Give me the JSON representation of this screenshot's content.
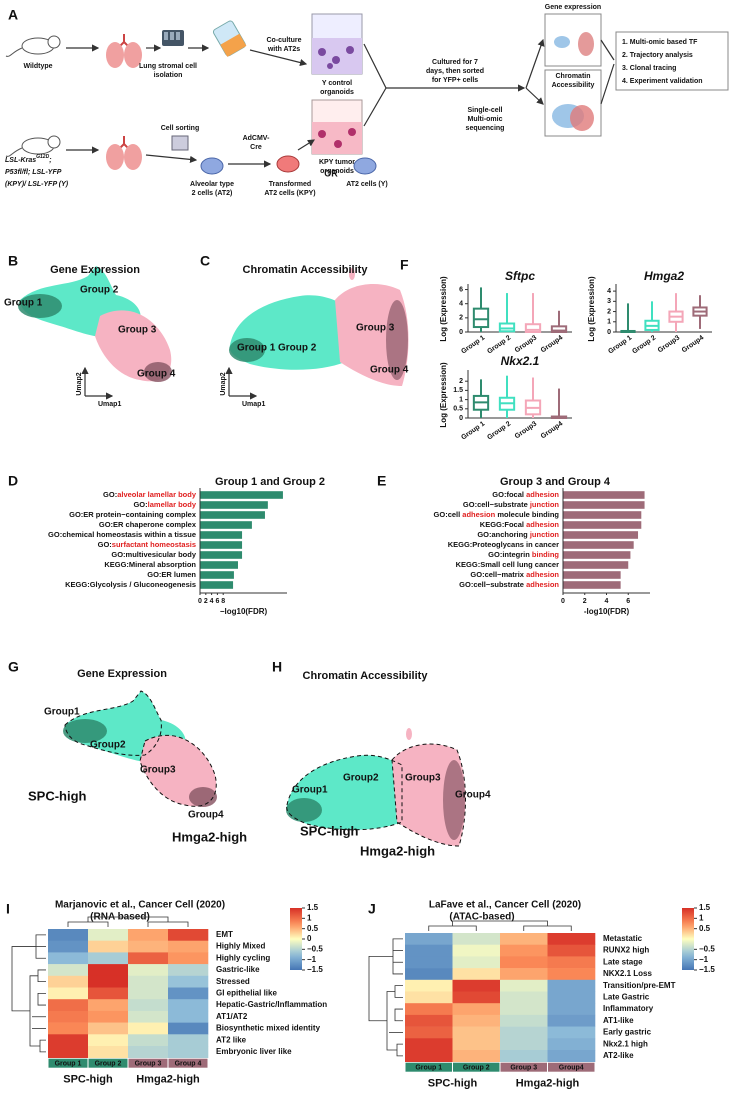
{
  "figure": {
    "panel_a": {
      "label": "A",
      "wildtype": "Wildtype",
      "isolation": [
        "Lung stromal cell",
        "isolation"
      ],
      "coculture": [
        "Co-culture",
        "with AT2s"
      ],
      "y_organoids": [
        "Y control",
        "organoids"
      ],
      "kpy_organoids": [
        "KPY tumor",
        "organoids"
      ],
      "cultured": [
        "Cultured for 7",
        "days, then sorted",
        "for YFP+ cells"
      ],
      "sequencing": [
        "Single-cell",
        "Multi-omic",
        "sequencing"
      ],
      "gene_expression": "Gene expression",
      "chromatin": [
        "Chromatin",
        "Accessibility"
      ],
      "steps": [
        "1. Multi-omic based TF",
        "2. Trajectory analysis",
        "3. Clonal tracing",
        "4. Experiment validation"
      ],
      "genotype": {
        "kras": "LSL-Kras",
        "sup": "G12D",
        "sep": ";",
        "line2": "P53fl/fl; LSL-YFP",
        "line3": "(KPY)/ LSL-YFP (Y)"
      },
      "sorting": "Cell sorting",
      "adcmv": [
        "AdCMV-",
        "Cre"
      ],
      "at2": [
        "Alveolar type",
        "2 cells (AT2)"
      ],
      "transformed": [
        "Transformed",
        "AT2 cells (KPY)"
      ],
      "or": "OR",
      "at2_y": "AT2 cells (Y)"
    },
    "panel_b": {
      "label": "B",
      "title": "Gene Expression",
      "groups": [
        "Group 1",
        "Group 2",
        "Group 3",
        "Group 4"
      ],
      "axes": [
        "Umap1",
        "Umap2"
      ]
    },
    "panel_c": {
      "label": "C",
      "title": "Chromatin Accessibility",
      "groups": [
        "Group 1",
        "Group 2",
        "Group 3",
        "Group 4"
      ],
      "axes": [
        "Umap1",
        "Umap2"
      ]
    },
    "panel_f": {
      "label": "F"
    },
    "panel_g": {
      "label": "G",
      "title": "Gene Expression",
      "groups": [
        "Group1",
        "Group2",
        "Group3",
        "Group4"
      ],
      "regions": [
        "SPC-high",
        "Hmga2-high"
      ]
    },
    "panel_h": {
      "label": "H",
      "title": "Chromatin Accessibility",
      "groups": [
        "Group1",
        "Group2",
        "Group3",
        "Group4"
      ],
      "regions": [
        "SPC-high",
        "Hmga2-high"
      ]
    }
  },
  "chart_data": [
    {
      "type": "box",
      "title": "Sftpc",
      "ylabel": "Log (Expression)",
      "categories": [
        "Group 1",
        "Group 2",
        "Group3",
        "Group4"
      ],
      "colors": [
        "#2e8b6e",
        "#40e0c0",
        "#f4a6b8",
        "#9e6b78"
      ],
      "min": [
        0,
        0,
        0,
        0
      ],
      "q1": [
        0.7,
        0.1,
        0,
        0
      ],
      "median": [
        1.8,
        0.5,
        0.3,
        0.2
      ],
      "q3": [
        3.3,
        1.2,
        1.1,
        0.8
      ],
      "max": [
        6.3,
        5.5,
        5.5,
        3
      ],
      "ylim": [
        0,
        6.5
      ],
      "yticks": [
        0,
        2,
        4,
        6
      ]
    },
    {
      "type": "box",
      "title": "Hmga2",
      "ylabel": "Log (Expression)",
      "categories": [
        "Group 1",
        "Group 2",
        "Group3",
        "Group4"
      ],
      "colors": [
        "#2e8b6e",
        "#40e0c0",
        "#f4a6b8",
        "#9e6b78"
      ],
      "min": [
        0,
        0,
        0,
        0.3
      ],
      "q1": [
        0,
        0.2,
        1,
        1.6
      ],
      "median": [
        0,
        0.6,
        1.5,
        2
      ],
      "q3": [
        0.1,
        1.1,
        2,
        2.4
      ],
      "max": [
        2.8,
        3,
        3.8,
        3.6
      ],
      "ylim": [
        0,
        4.5
      ],
      "yticks": [
        0,
        1,
        2,
        3,
        4
      ]
    },
    {
      "type": "box",
      "title": "Nkx2.1",
      "ylabel": "Log (Expression)",
      "categories": [
        "Group 1",
        "Group 2",
        "Group3",
        "Group4"
      ],
      "colors": [
        "#2e8b6e",
        "#40e0c0",
        "#f4a6b8",
        "#9e6b78"
      ],
      "min": [
        0,
        0,
        0,
        0
      ],
      "q1": [
        0.45,
        0.45,
        0.2,
        0
      ],
      "median": [
        0.85,
        0.8,
        0.55,
        0
      ],
      "q3": [
        1.2,
        1.1,
        0.95,
        0.08
      ],
      "max": [
        2.1,
        2.3,
        2.2,
        1.6
      ],
      "ylim": [
        0,
        2.5
      ],
      "yticks": [
        0,
        0.5,
        1,
        1.5,
        2
      ]
    },
    {
      "type": "barh",
      "panel": "D",
      "title": "Group 1 and Group 2",
      "color": "#2e8b6e",
      "xlabel": "−log10(FDR)",
      "xlim": [
        0,
        30
      ],
      "xticks": [
        0,
        2,
        4,
        6,
        8
      ],
      "categories": [
        {
          "text": "GO:",
          "highlight": "alveolar lamellar body"
        },
        {
          "text": "GO:",
          "highlight": "lamellar body"
        },
        {
          "text": "GO:ER protein−containing complex"
        },
        {
          "text": "GO:ER chaperone complex"
        },
        {
          "text": "GO:chemical homeostasis within a tissue"
        },
        {
          "text": "GO:",
          "highlight": "surfactant homeostasis"
        },
        {
          "text": "GO:multivesicular body"
        },
        {
          "text": "KEGG:Mineral absorption"
        },
        {
          "text": "GO:ER lumen"
        },
        {
          "text": "KEGG:Glycolysis / Gluconeogenesis"
        }
      ],
      "values": [
        28.6,
        23.4,
        22.4,
        17.9,
        14.5,
        14.5,
        14.5,
        13.1,
        11.7,
        11.4
      ]
    },
    {
      "type": "barh",
      "panel": "E",
      "title": "Group 3 and Group 4",
      "color": "#9e6b78",
      "xlabel": "-log10(FDR)",
      "xlim": [
        0,
        8
      ],
      "xticks": [
        0,
        2,
        4,
        6
      ],
      "categories": [
        {
          "text": "GO:focal ",
          "highlight": "adhesion"
        },
        {
          "text": "GO:cell−substrate ",
          "highlight": "junction"
        },
        {
          "text": "GO:cell ",
          "highlight": "adhesion",
          "after": " molecule binding"
        },
        {
          "text": "KEGG:Focal ",
          "highlight": "adhesion"
        },
        {
          "text": "GO:anchoring ",
          "highlight": "junction"
        },
        {
          "text": "KEGG:Proteoglycans in cancer"
        },
        {
          "text": "GO:integrin ",
          "highlight": "binding"
        },
        {
          "text": "KEGG:Small cell lung cancer"
        },
        {
          "text": "GO:cell−matrix ",
          "highlight": "adhesion"
        },
        {
          "text": "GO:cell−substrate ",
          "highlight": "adhesion"
        }
      ],
      "values": [
        7.5,
        7.5,
        7.2,
        7.2,
        6.9,
        6.5,
        6.2,
        6.0,
        5.3,
        5.3
      ]
    },
    {
      "type": "heatmap",
      "panel": "I",
      "title": "Marjanovic et al., Cancer Cell (2020)",
      "subtitle": "(RNA based)",
      "columns": [
        "Group 1",
        "Group 2",
        "Group 3",
        "Group 4"
      ],
      "column_colors": [
        "#2e8b6e",
        "#2e8b6e",
        "#9e6b78",
        "#9e6b78"
      ],
      "groups": [
        "SPC-high",
        "Hmga2-high"
      ],
      "group_colors": [
        "#2e8b6e",
        "#9e6b78"
      ],
      "rows": [
        "EMT",
        "Highly Mixed",
        "Highly cycling",
        "Gastric-like",
        "Stressed",
        "GI epithelial like",
        "Hepatic-Gastric/Inflammation",
        "AT1/AT2",
        "Biosynthetic mixed identity",
        "AT2 like",
        "Embryonic liver like"
      ],
      "values": [
        [
          -1.3,
          -0.2,
          0.6,
          1.3
        ],
        [
          -1.2,
          0.3,
          0.5,
          0.6
        ],
        [
          -0.8,
          -0.6,
          1.1,
          0.7
        ],
        [
          -0.3,
          1.5,
          -0.2,
          -0.5
        ],
        [
          0.3,
          1.5,
          -0.3,
          -0.7
        ],
        [
          0.1,
          1.2,
          -0.3,
          -1.2
        ],
        [
          1.0,
          0.6,
          -0.4,
          -0.8
        ],
        [
          0.9,
          0.7,
          -0.3,
          -0.8
        ],
        [
          0.8,
          0.4,
          0.1,
          -1.3
        ],
        [
          1.4,
          0.1,
          -0.4,
          -0.6
        ],
        [
          1.4,
          0.2,
          -0.5,
          -0.6
        ]
      ],
      "colorlim": [
        -1.5,
        1.5
      ],
      "colorticks": [
        1.5,
        1,
        0.5,
        0,
        {
          "value": -0.5,
          "label": "−0.5"
        },
        {
          "value": -1,
          "label": "−1"
        },
        {
          "value": -1.5,
          "label": "−1.5"
        }
      ]
    },
    {
      "type": "heatmap",
      "panel": "J",
      "title": "LaFave et al., Cancer Cell (2020)",
      "subtitle": "(ATAC-based)",
      "columns": [
        "Group 1",
        "Group 2",
        "Group 3",
        "Group4"
      ],
      "column_colors": [
        "#2e8b6e",
        "#2e8b6e",
        "#9e6b78",
        "#9e6b78"
      ],
      "groups": [
        "SPC-high",
        "Hmga2-high"
      ],
      "group_colors": [
        "#2e8b6e",
        "#9e6b78"
      ],
      "rows": [
        "Metastatic",
        "RUNX2 high",
        "Late stage",
        "NKX2.1 Loss",
        "Transition/pre-EMT",
        "Late Gastric",
        "Inflammatory",
        "AT1-like",
        "Early gastric",
        "Nkx2.1 high",
        "AT2-like"
      ],
      "values": [
        [
          -1.0,
          -0.3,
          0.5,
          1.4
        ],
        [
          -1.2,
          -0.1,
          0.7,
          1.2
        ],
        [
          -1.2,
          -0.2,
          0.8,
          0.9
        ],
        [
          -1.3,
          0.2,
          0.6,
          0.8
        ],
        [
          0.1,
          1.4,
          -0.2,
          -1.0
        ],
        [
          0.2,
          1.3,
          -0.3,
          -1.0
        ],
        [
          0.9,
          0.6,
          -0.3,
          -1.0
        ],
        [
          1.2,
          0.5,
          -0.4,
          -1.1
        ],
        [
          1.1,
          0.4,
          -0.5,
          -0.8
        ],
        [
          1.4,
          0.4,
          -0.5,
          -0.9
        ],
        [
          1.4,
          0.5,
          -0.6,
          -1.0
        ]
      ],
      "colorlim": [
        -1.5,
        1.5
      ],
      "colorticks": [
        1.5,
        1,
        0.5,
        {
          "value": -0.5,
          "label": "−0.5"
        },
        {
          "value": -1,
          "label": "−1"
        },
        {
          "value": -1.5,
          "label": "−1.5"
        }
      ]
    }
  ]
}
